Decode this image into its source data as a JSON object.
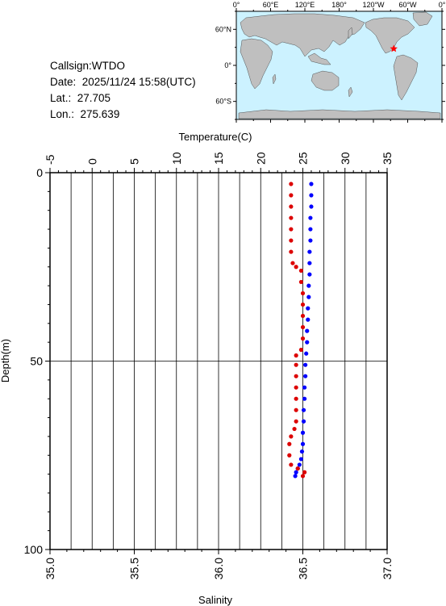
{
  "info": {
    "callsign": "Callsign:WTDO",
    "date": "Date:  2025/11/24 15:58(UTC)",
    "lat": "Lat.:  27.705",
    "lon": "Lon.:  275.639"
  },
  "map": {
    "top_labels": [
      "0°",
      "60°E",
      "120°E",
      "180°",
      "120°W",
      "60°W",
      "0°"
    ],
    "left_labels": [
      "60°N",
      "0°",
      "60°S"
    ],
    "station": {
      "lon": 275.639,
      "lat": 27.705
    },
    "ocean_color": "#ccf2ff",
    "land_color": "#bfbfbf",
    "marker_color": "#ff0000"
  },
  "chart_data": {
    "type": "scatter",
    "ylabel": "Depth(m)",
    "top_axis": {
      "label": "Temperature(C)",
      "range": [
        -5,
        35
      ],
      "ticks": [
        -5,
        0,
        5,
        10,
        15,
        20,
        25,
        30,
        35
      ]
    },
    "bottom_axis": {
      "label": "Salinity",
      "range": [
        35.0,
        37.0
      ],
      "ticks": [
        "35.0",
        "35.5",
        "36.0",
        "36.5",
        "37.0"
      ]
    },
    "depth_axis": {
      "range": [
        0,
        100
      ],
      "inverted": true,
      "ticks": [
        0,
        50,
        100
      ]
    },
    "grid": true,
    "series": [
      {
        "axis": "temperature",
        "color": "#0000ff",
        "points": [
          [
            26.0,
            3
          ],
          [
            26.0,
            6
          ],
          [
            26.0,
            9
          ],
          [
            25.9,
            12
          ],
          [
            25.9,
            15
          ],
          [
            25.9,
            18
          ],
          [
            25.8,
            21
          ],
          [
            25.8,
            24
          ],
          [
            25.8,
            27
          ],
          [
            25.7,
            30
          ],
          [
            25.7,
            33
          ],
          [
            25.6,
            36
          ],
          [
            25.6,
            39
          ],
          [
            25.5,
            42
          ],
          [
            25.5,
            45
          ],
          [
            25.4,
            48
          ],
          [
            25.3,
            51
          ],
          [
            25.3,
            54
          ],
          [
            25.2,
            57
          ],
          [
            25.2,
            60
          ],
          [
            25.1,
            63
          ],
          [
            25.1,
            66
          ],
          [
            25.0,
            69
          ],
          [
            25.0,
            72
          ],
          [
            24.9,
            74
          ],
          [
            24.8,
            76
          ],
          [
            24.6,
            77.5
          ],
          [
            24.4,
            78.5
          ],
          [
            24.2,
            79.5
          ],
          [
            24.1,
            80.5
          ]
        ]
      },
      {
        "axis": "salinity",
        "color": "#dd0000",
        "points": [
          [
            36.43,
            3
          ],
          [
            36.43,
            6
          ],
          [
            36.43,
            9
          ],
          [
            36.43,
            12
          ],
          [
            36.43,
            15
          ],
          [
            36.43,
            18
          ],
          [
            36.43,
            21
          ],
          [
            36.44,
            24
          ],
          [
            36.46,
            25
          ],
          [
            36.49,
            26
          ],
          [
            36.49,
            29
          ],
          [
            36.5,
            32
          ],
          [
            36.5,
            35
          ],
          [
            36.5,
            38
          ],
          [
            36.5,
            41
          ],
          [
            36.5,
            44
          ],
          [
            36.49,
            47
          ],
          [
            36.46,
            48.5
          ],
          [
            36.46,
            51
          ],
          [
            36.46,
            54
          ],
          [
            36.46,
            57
          ],
          [
            36.46,
            60
          ],
          [
            36.46,
            63
          ],
          [
            36.46,
            66
          ],
          [
            36.45,
            68
          ],
          [
            36.43,
            70
          ],
          [
            36.42,
            72
          ],
          [
            36.42,
            75
          ],
          [
            36.43,
            77.5
          ],
          [
            36.47,
            78.5
          ],
          [
            36.51,
            79.5
          ],
          [
            36.5,
            80.5
          ]
        ]
      }
    ]
  }
}
